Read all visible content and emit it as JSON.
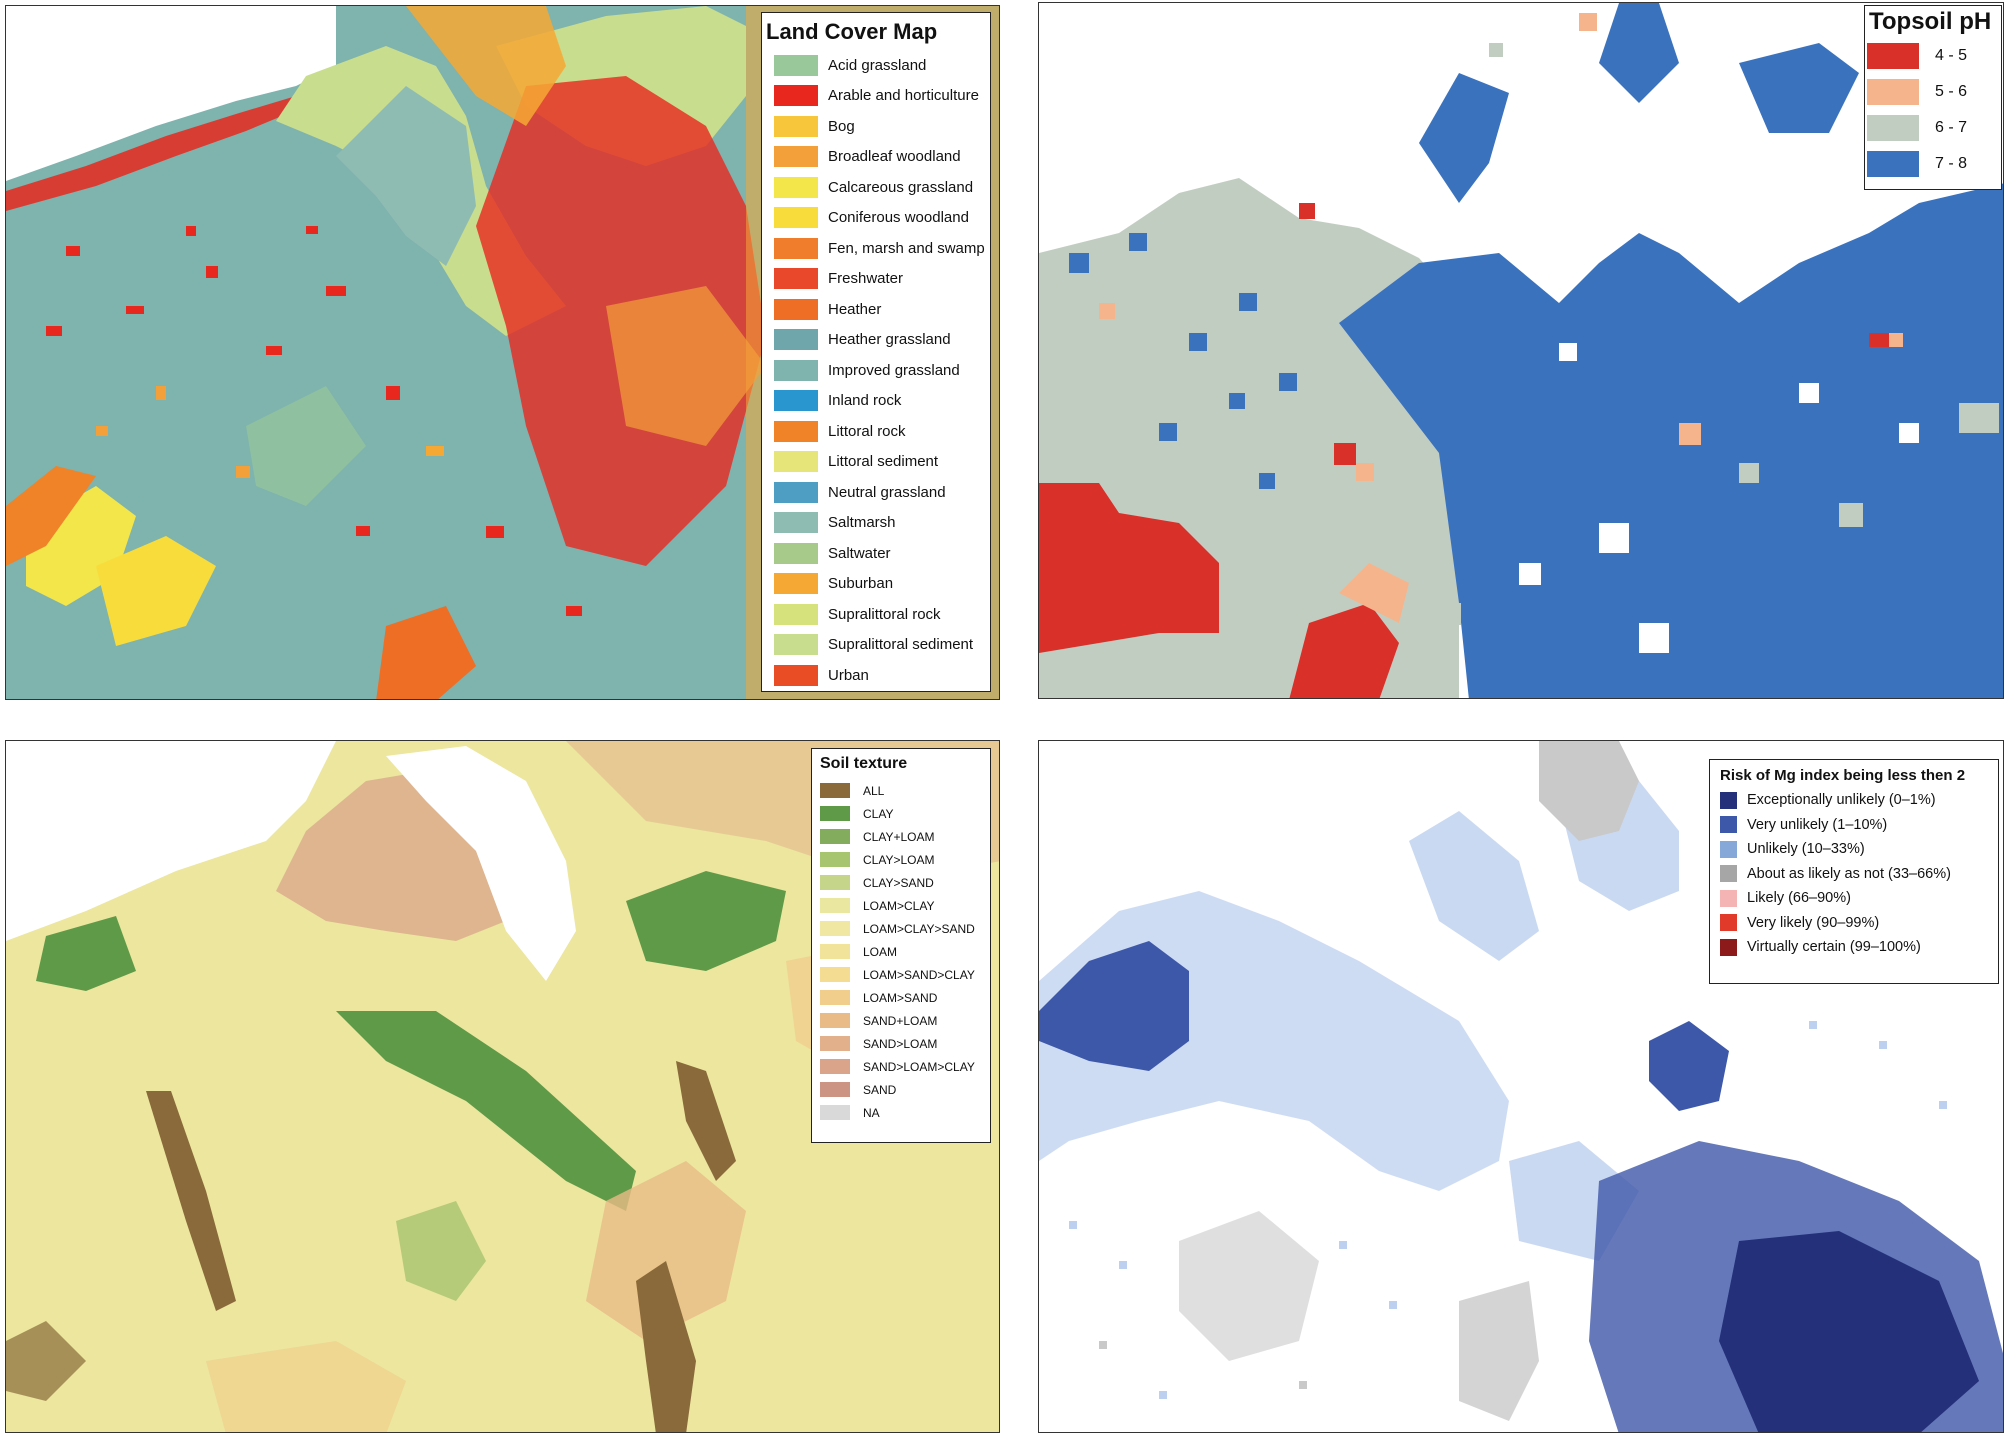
{
  "land_cover": {
    "title": "Land Cover Map",
    "classes": [
      {
        "label": "Acid grassland",
        "color": "#99c99a"
      },
      {
        "label": "Arable and horticulture",
        "color": "#e8281f"
      },
      {
        "label": "Bog",
        "color": "#f7c63a"
      },
      {
        "label": "Broadleaf woodland",
        "color": "#f4a03a"
      },
      {
        "label": "Calcareous grassland",
        "color": "#f2e64a"
      },
      {
        "label": "Coniferous woodland",
        "color": "#f8dc3c"
      },
      {
        "label": "Fen, marsh and swamp",
        "color": "#ef7d2c"
      },
      {
        "label": "Freshwater",
        "color": "#e9482a"
      },
      {
        "label": "Heather",
        "color": "#ee6e26"
      },
      {
        "label": "Heather grassland",
        "color": "#6fa6ab"
      },
      {
        "label": "Improved grassland",
        "color": "#7fb3ad"
      },
      {
        "label": "Inland rock",
        "color": "#2a96cf"
      },
      {
        "label": "Littoral rock",
        "color": "#f08228"
      },
      {
        "label": "Littoral sediment",
        "color": "#e6e57a"
      },
      {
        "label": "Neutral grassland",
        "color": "#4d9ec2"
      },
      {
        "label": "Saltmarsh",
        "color": "#8fbcb2"
      },
      {
        "label": "Saltwater",
        "color": "#a7ca8a"
      },
      {
        "label": "Suburban",
        "color": "#f6a834"
      },
      {
        "label": "Supralittoral rock",
        "color": "#d6e27c"
      },
      {
        "label": "Supralittoral sediment",
        "color": "#c8dd8e"
      },
      {
        "label": "Urban",
        "color": "#e94d26"
      }
    ]
  },
  "topsoil_ph": {
    "title": "Topsoil pH",
    "classes": [
      {
        "label": "4 - 5",
        "color": "#d9302a"
      },
      {
        "label": "5 - 6",
        "color": "#f6b48c"
      },
      {
        "label": "6 - 7",
        "color": "#c2cdc2"
      },
      {
        "label": "7 - 8",
        "color": "#3a72bd"
      }
    ]
  },
  "soil_texture": {
    "title": "Soil texture",
    "classes": [
      {
        "label": "ALL",
        "color": "#8a6a3a"
      },
      {
        "label": "CLAY",
        "color": "#5f9a48"
      },
      {
        "label": "CLAY+LOAM",
        "color": "#83ac5c"
      },
      {
        "label": "CLAY>LOAM",
        "color": "#a7c46f"
      },
      {
        "label": "CLAY>SAND",
        "color": "#c5d58a"
      },
      {
        "label": "LOAM>CLAY",
        "color": "#eae7a0"
      },
      {
        "label": "LOAM>CLAY>SAND",
        "color": "#f0e8a2"
      },
      {
        "label": "LOAM",
        "color": "#f2e39a"
      },
      {
        "label": "LOAM>SAND>CLAY",
        "color": "#f4dc92"
      },
      {
        "label": "LOAM>SAND",
        "color": "#f1ce8c"
      },
      {
        "label": "SAND+LOAM",
        "color": "#e9bb86"
      },
      {
        "label": "SAND>LOAM",
        "color": "#e2b08a"
      },
      {
        "label": "SAND>LOAM>CLAY",
        "color": "#d9a48a"
      },
      {
        "label": "SAND",
        "color": "#cc9482"
      },
      {
        "label": "NA",
        "color": "#d9d9d9"
      }
    ]
  },
  "mg_risk": {
    "title": "Risk of Mg index being less then 2",
    "classes": [
      {
        "label": "Exceptionally unlikely (0–1%)",
        "color": "#25307a"
      },
      {
        "label": "Very unlikely (1–10%)",
        "color": "#3e58a9"
      },
      {
        "label": "Unlikely (10–33%)",
        "color": "#86a8d8"
      },
      {
        "label": "About as likely as not (33–66%)",
        "color": "#a6a6a6"
      },
      {
        "label": "Likely (66–90%)",
        "color": "#f4b4b4"
      },
      {
        "label": "Very likely (90–99%)",
        "color": "#e23a2a"
      },
      {
        "label": "Virtually certain (99–100%)",
        "color": "#8c1a1a"
      }
    ]
  }
}
